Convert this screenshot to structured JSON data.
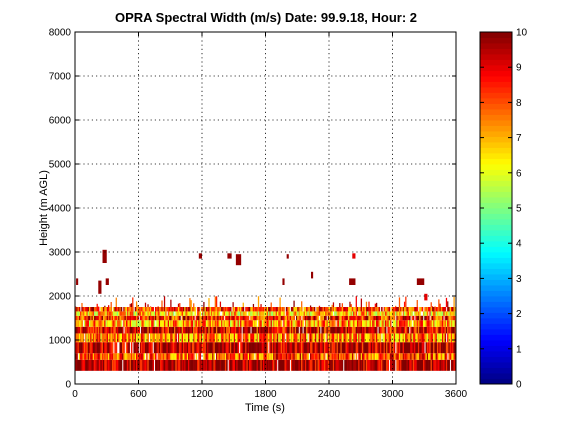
{
  "chart_data": {
    "type": "heatmap",
    "title": "OPRA Spectral Width (m/s)  Date: 99.9.18, Hour: 2",
    "xlabel": "Time (s)",
    "ylabel": "Height (m AGL)",
    "xlim": [
      0,
      3600
    ],
    "ylim": [
      0,
      8000
    ],
    "xticks": [
      "0",
      "600",
      "1200",
      "1800",
      "2400",
      "3000",
      "3600"
    ],
    "yticks": [
      "0",
      "1000",
      "2000",
      "3000",
      "4000",
      "5000",
      "6000",
      "7000",
      "8000"
    ],
    "grid": true,
    "colorbar": {
      "range": [
        0,
        10
      ],
      "ticks": [
        "0",
        "1",
        "2",
        "3",
        "4",
        "5",
        "6",
        "7",
        "8",
        "9",
        "10"
      ],
      "colormap": "jet"
    },
    "layers": [
      {
        "y": [
          300,
          550
        ],
        "value": 9.7
      },
      {
        "y": [
          550,
          700
        ],
        "value": 8.0
      },
      {
        "y": [
          700,
          950
        ],
        "value": 9.6
      },
      {
        "y": [
          950,
          1150
        ],
        "value": 7.5
      },
      {
        "y": [
          1150,
          1300
        ],
        "value": 9.0
      },
      {
        "y": [
          1300,
          1450
        ],
        "value": 7.2
      },
      {
        "y": [
          1450,
          1550
        ],
        "value": 8.5
      },
      {
        "y": [
          1550,
          1650
        ],
        "value": 6.8
      },
      {
        "y": [
          1650,
          1750
        ],
        "value": 8.2
      }
    ],
    "scattered_echoes": [
      {
        "x": 260,
        "y": 2750,
        "w": 40,
        "h": 300,
        "value": 9.8
      },
      {
        "x": 1170,
        "y": 2850,
        "w": 30,
        "h": 120,
        "value": 9.8
      },
      {
        "x": 1440,
        "y": 2850,
        "w": 40,
        "h": 120,
        "value": 9.8
      },
      {
        "x": 1520,
        "y": 2700,
        "w": 50,
        "h": 250,
        "value": 9.8
      },
      {
        "x": 2000,
        "y": 2850,
        "w": 20,
        "h": 100,
        "value": 9.8
      },
      {
        "x": 2620,
        "y": 2850,
        "w": 30,
        "h": 120,
        "value": 9.0
      },
      {
        "x": 10,
        "y": 2250,
        "w": 20,
        "h": 150,
        "value": 9.8
      },
      {
        "x": 220,
        "y": 2050,
        "w": 30,
        "h": 300,
        "value": 9.8
      },
      {
        "x": 290,
        "y": 2250,
        "w": 30,
        "h": 150,
        "value": 9.8
      },
      {
        "x": 1960,
        "y": 2250,
        "w": 20,
        "h": 150,
        "value": 9.8
      },
      {
        "x": 2230,
        "y": 2400,
        "w": 20,
        "h": 150,
        "value": 9.8
      },
      {
        "x": 2590,
        "y": 2250,
        "w": 60,
        "h": 150,
        "value": 9.8
      },
      {
        "x": 3230,
        "y": 2250,
        "w": 70,
        "h": 150,
        "value": 9.8
      },
      {
        "x": 3300,
        "y": 1900,
        "w": 30,
        "h": 150,
        "value": 9.0
      }
    ]
  }
}
